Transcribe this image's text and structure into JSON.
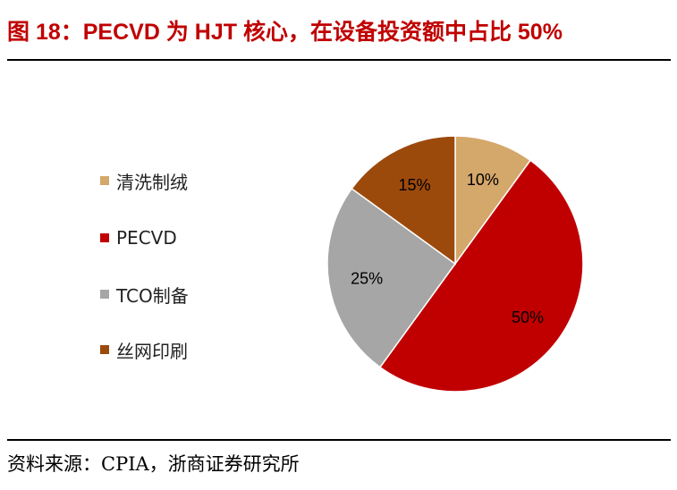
{
  "chart_data": {
    "type": "pie",
    "title": "图 18：PECVD 为 HJT 核心，在设备投资额中占比 50%",
    "source": "资料来源：CPIA，浙商证券研究所",
    "categories": [
      "清洗制绒",
      "PECVD",
      "TCO制备",
      "丝网印刷"
    ],
    "values": [
      10,
      50,
      25,
      15
    ],
    "labels": [
      "10%",
      "50%",
      "25%",
      "15%"
    ],
    "colors": [
      "#d4a76a",
      "#c00000",
      "#a6a6a6",
      "#9c4a0c"
    ],
    "legend": "left"
  }
}
